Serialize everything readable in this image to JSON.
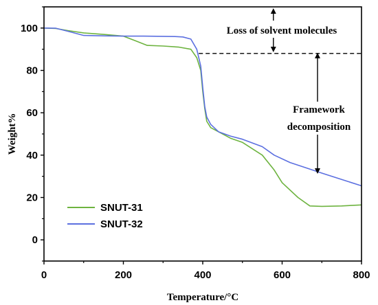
{
  "chart_data": {
    "type": "line",
    "xlabel": "Temperature/°C",
    "ylabel": "Weight%",
    "xlim": [
      0,
      800
    ],
    "ylim": [
      -10,
      110
    ],
    "xticks": [
      0,
      200,
      400,
      600,
      800
    ],
    "yticks": [
      0,
      20,
      40,
      60,
      80,
      100
    ],
    "grid": false,
    "legend_position": "bottom-left",
    "series": [
      {
        "name": "SNUT-31",
        "color": "#6db33f",
        "x": [
          0,
          30,
          60,
          100,
          150,
          200,
          230,
          260,
          300,
          340,
          370,
          385,
          395,
          400,
          405,
          410,
          420,
          440,
          470,
          500,
          550,
          580,
          600,
          640,
          670,
          700,
          750,
          800
        ],
        "y": [
          100,
          99.8,
          98.8,
          97.7,
          97,
          96.2,
          94,
          91.8,
          91.5,
          91,
          90,
          86,
          80,
          70,
          62,
          56,
          53,
          51,
          48,
          46,
          40,
          33,
          27,
          20,
          16,
          15.8,
          16,
          16.5
        ]
      },
      {
        "name": "SNUT-32",
        "color": "#5b6fe0",
        "x": [
          0,
          30,
          60,
          100,
          150,
          200,
          250,
          300,
          330,
          350,
          370,
          385,
          395,
          400,
          405,
          410,
          420,
          440,
          470,
          500,
          550,
          580,
          620,
          660,
          700,
          750,
          800
        ],
        "y": [
          100,
          99.9,
          98.5,
          96.5,
          96.3,
          96.2,
          96.2,
          96.1,
          96,
          95.8,
          94.8,
          90,
          82,
          72,
          63,
          58,
          54.5,
          51,
          49,
          47.5,
          44,
          40,
          36.5,
          34,
          31.5,
          28.5,
          25.5
        ]
      }
    ],
    "annotations": [
      {
        "text": "Loss of solvent molecules"
      },
      {
        "text": "Framework"
      },
      {
        "text": "decomposition"
      }
    ],
    "reference_line": {
      "y": 88,
      "x_start": 390,
      "x_end": 800,
      "style": "dashed"
    }
  }
}
